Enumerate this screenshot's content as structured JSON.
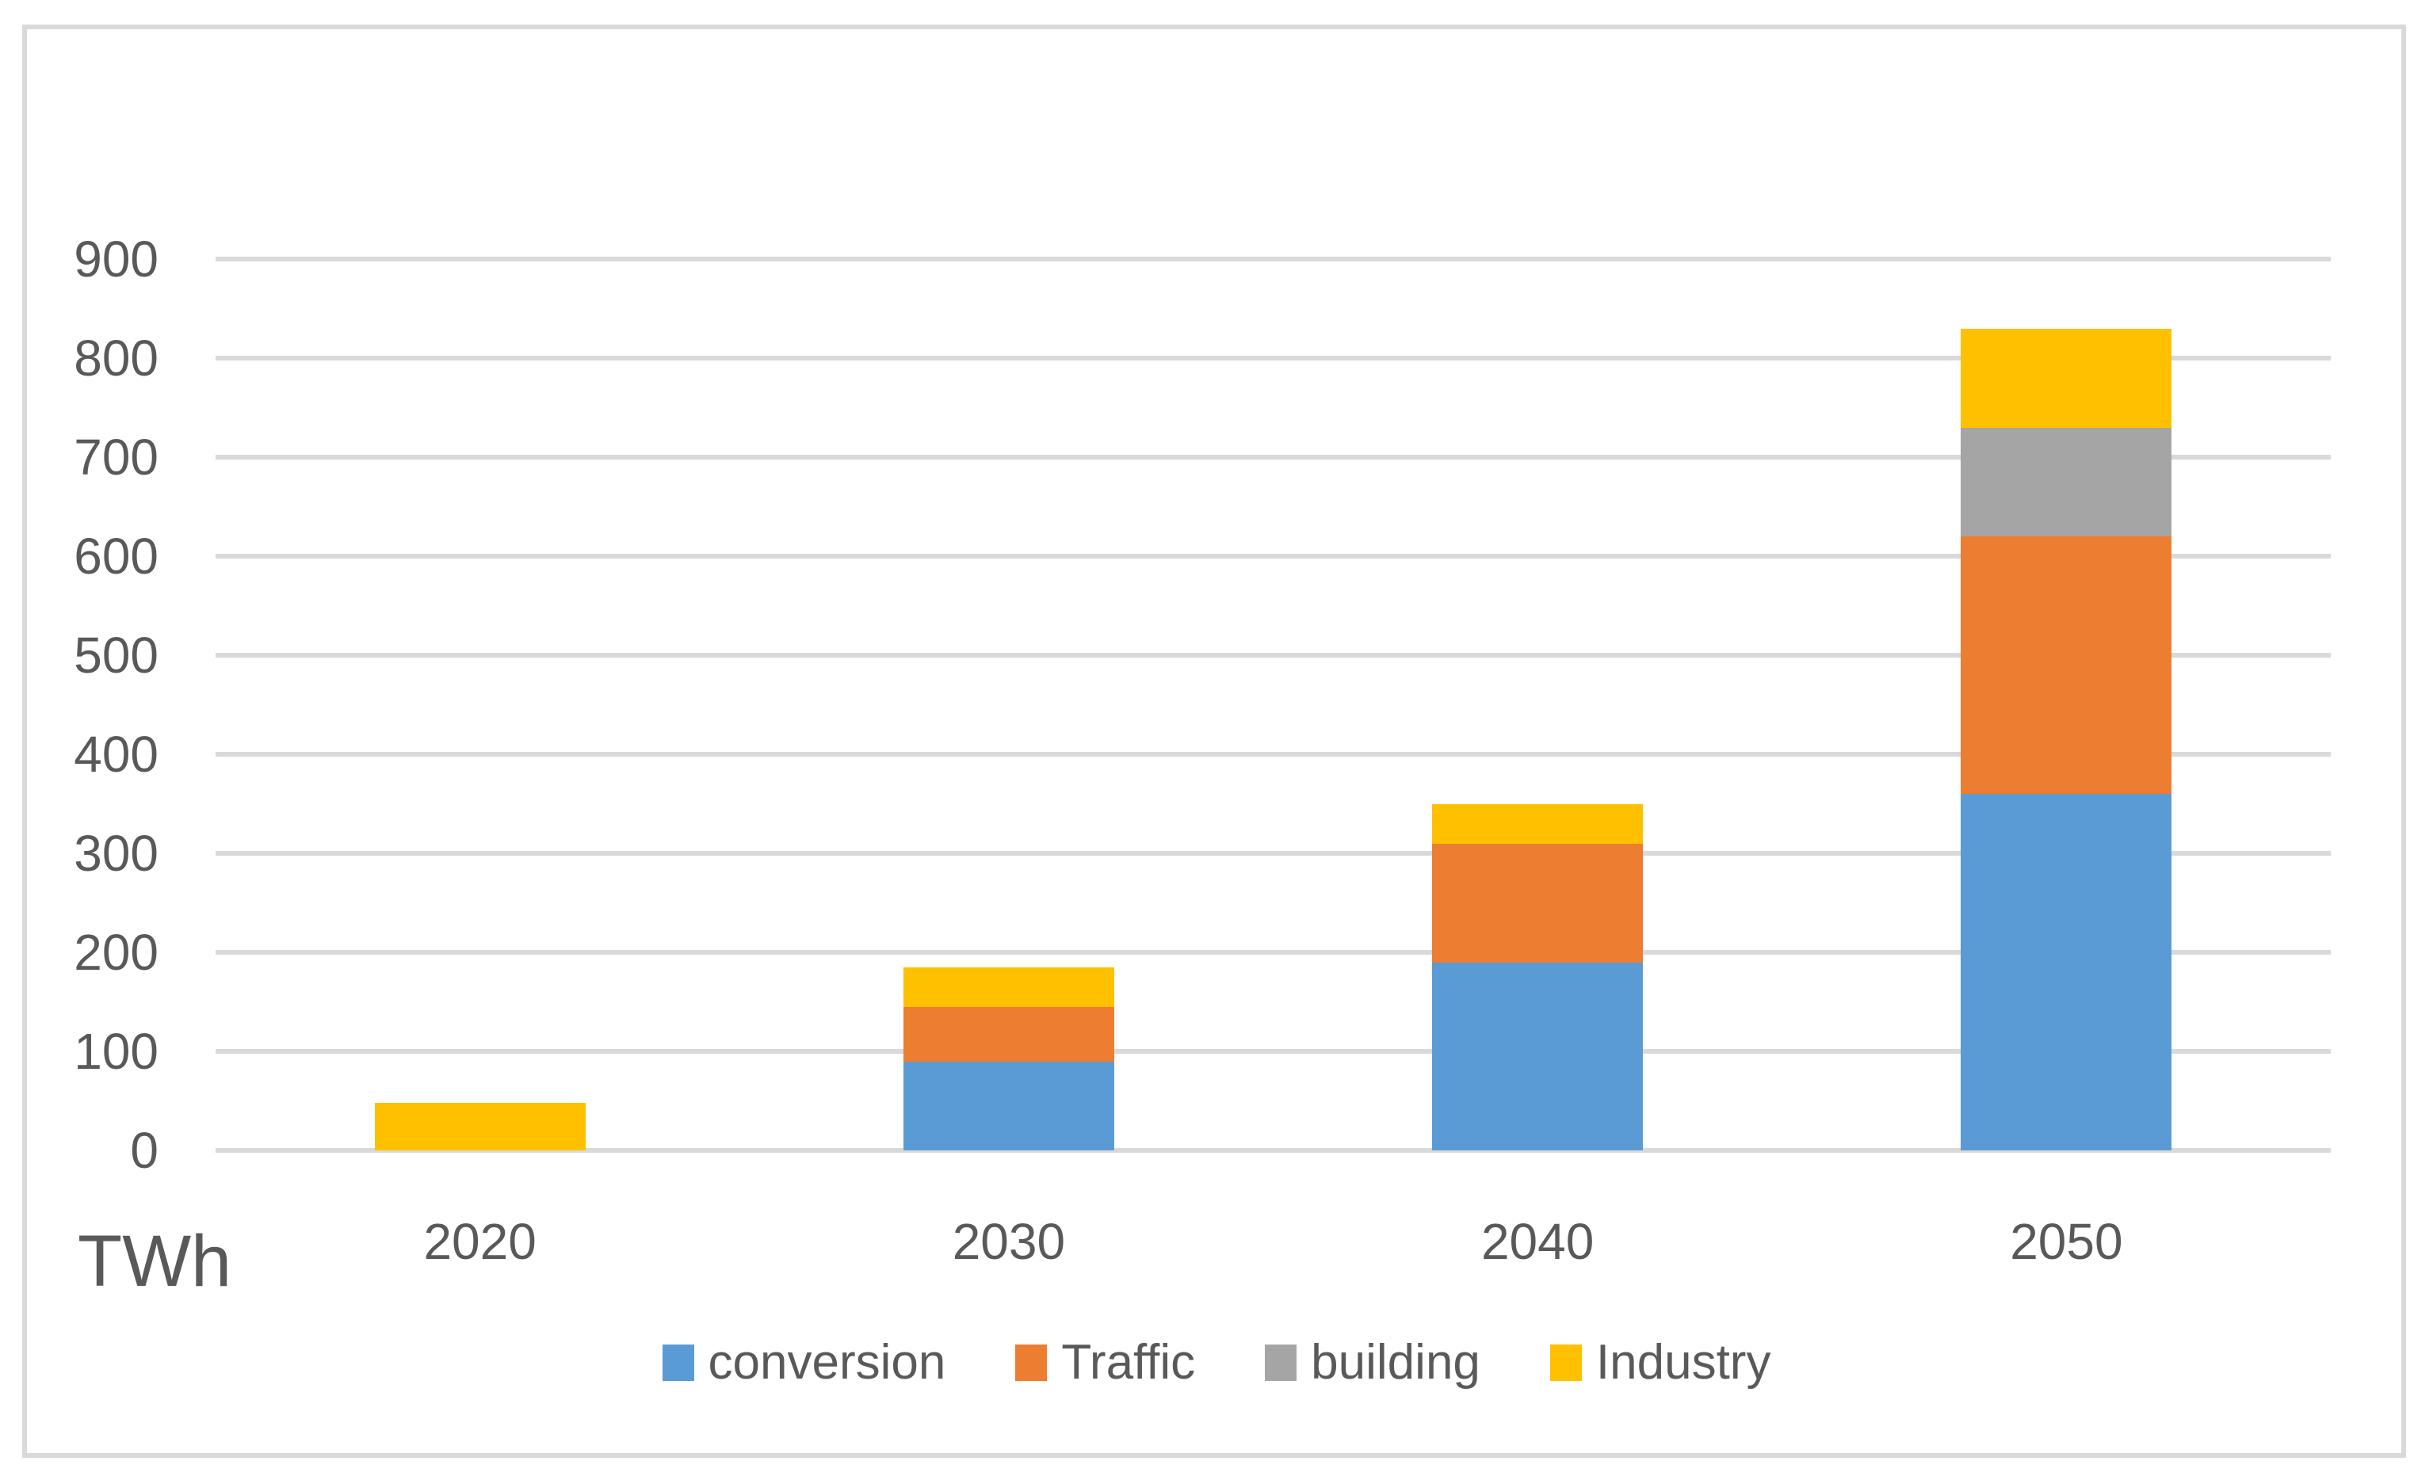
{
  "window": {
    "background_color": "#FFFFFF",
    "frame_border_color": "#D9D9D9"
  },
  "chart_data": {
    "type": "bar",
    "stacked": true,
    "title": "",
    "xlabel": "",
    "ylabel": "TWh",
    "categories": [
      "2020",
      "2030",
      "2040",
      "2050"
    ],
    "series": [
      {
        "name": "conversion",
        "color": "#5B9BD5",
        "values": [
          0,
          90,
          190,
          360
        ]
      },
      {
        "name": "Traffic",
        "color": "#ED7D31",
        "values": [
          0,
          55,
          120,
          260
        ]
      },
      {
        "name": "building",
        "color": "#A5A5A5",
        "values": [
          0,
          0,
          0,
          110
        ]
      },
      {
        "name": "Industry",
        "color": "#FFC000",
        "values": [
          48,
          40,
          40,
          100
        ]
      }
    ],
    "ylim": [
      0,
      900
    ],
    "yticks": [
      0,
      100,
      200,
      300,
      400,
      500,
      600,
      700,
      800,
      900
    ],
    "grid": true,
    "gridline_color": "#D9D9D9",
    "axis_text_color": "#595959",
    "legend_position": "bottom"
  }
}
